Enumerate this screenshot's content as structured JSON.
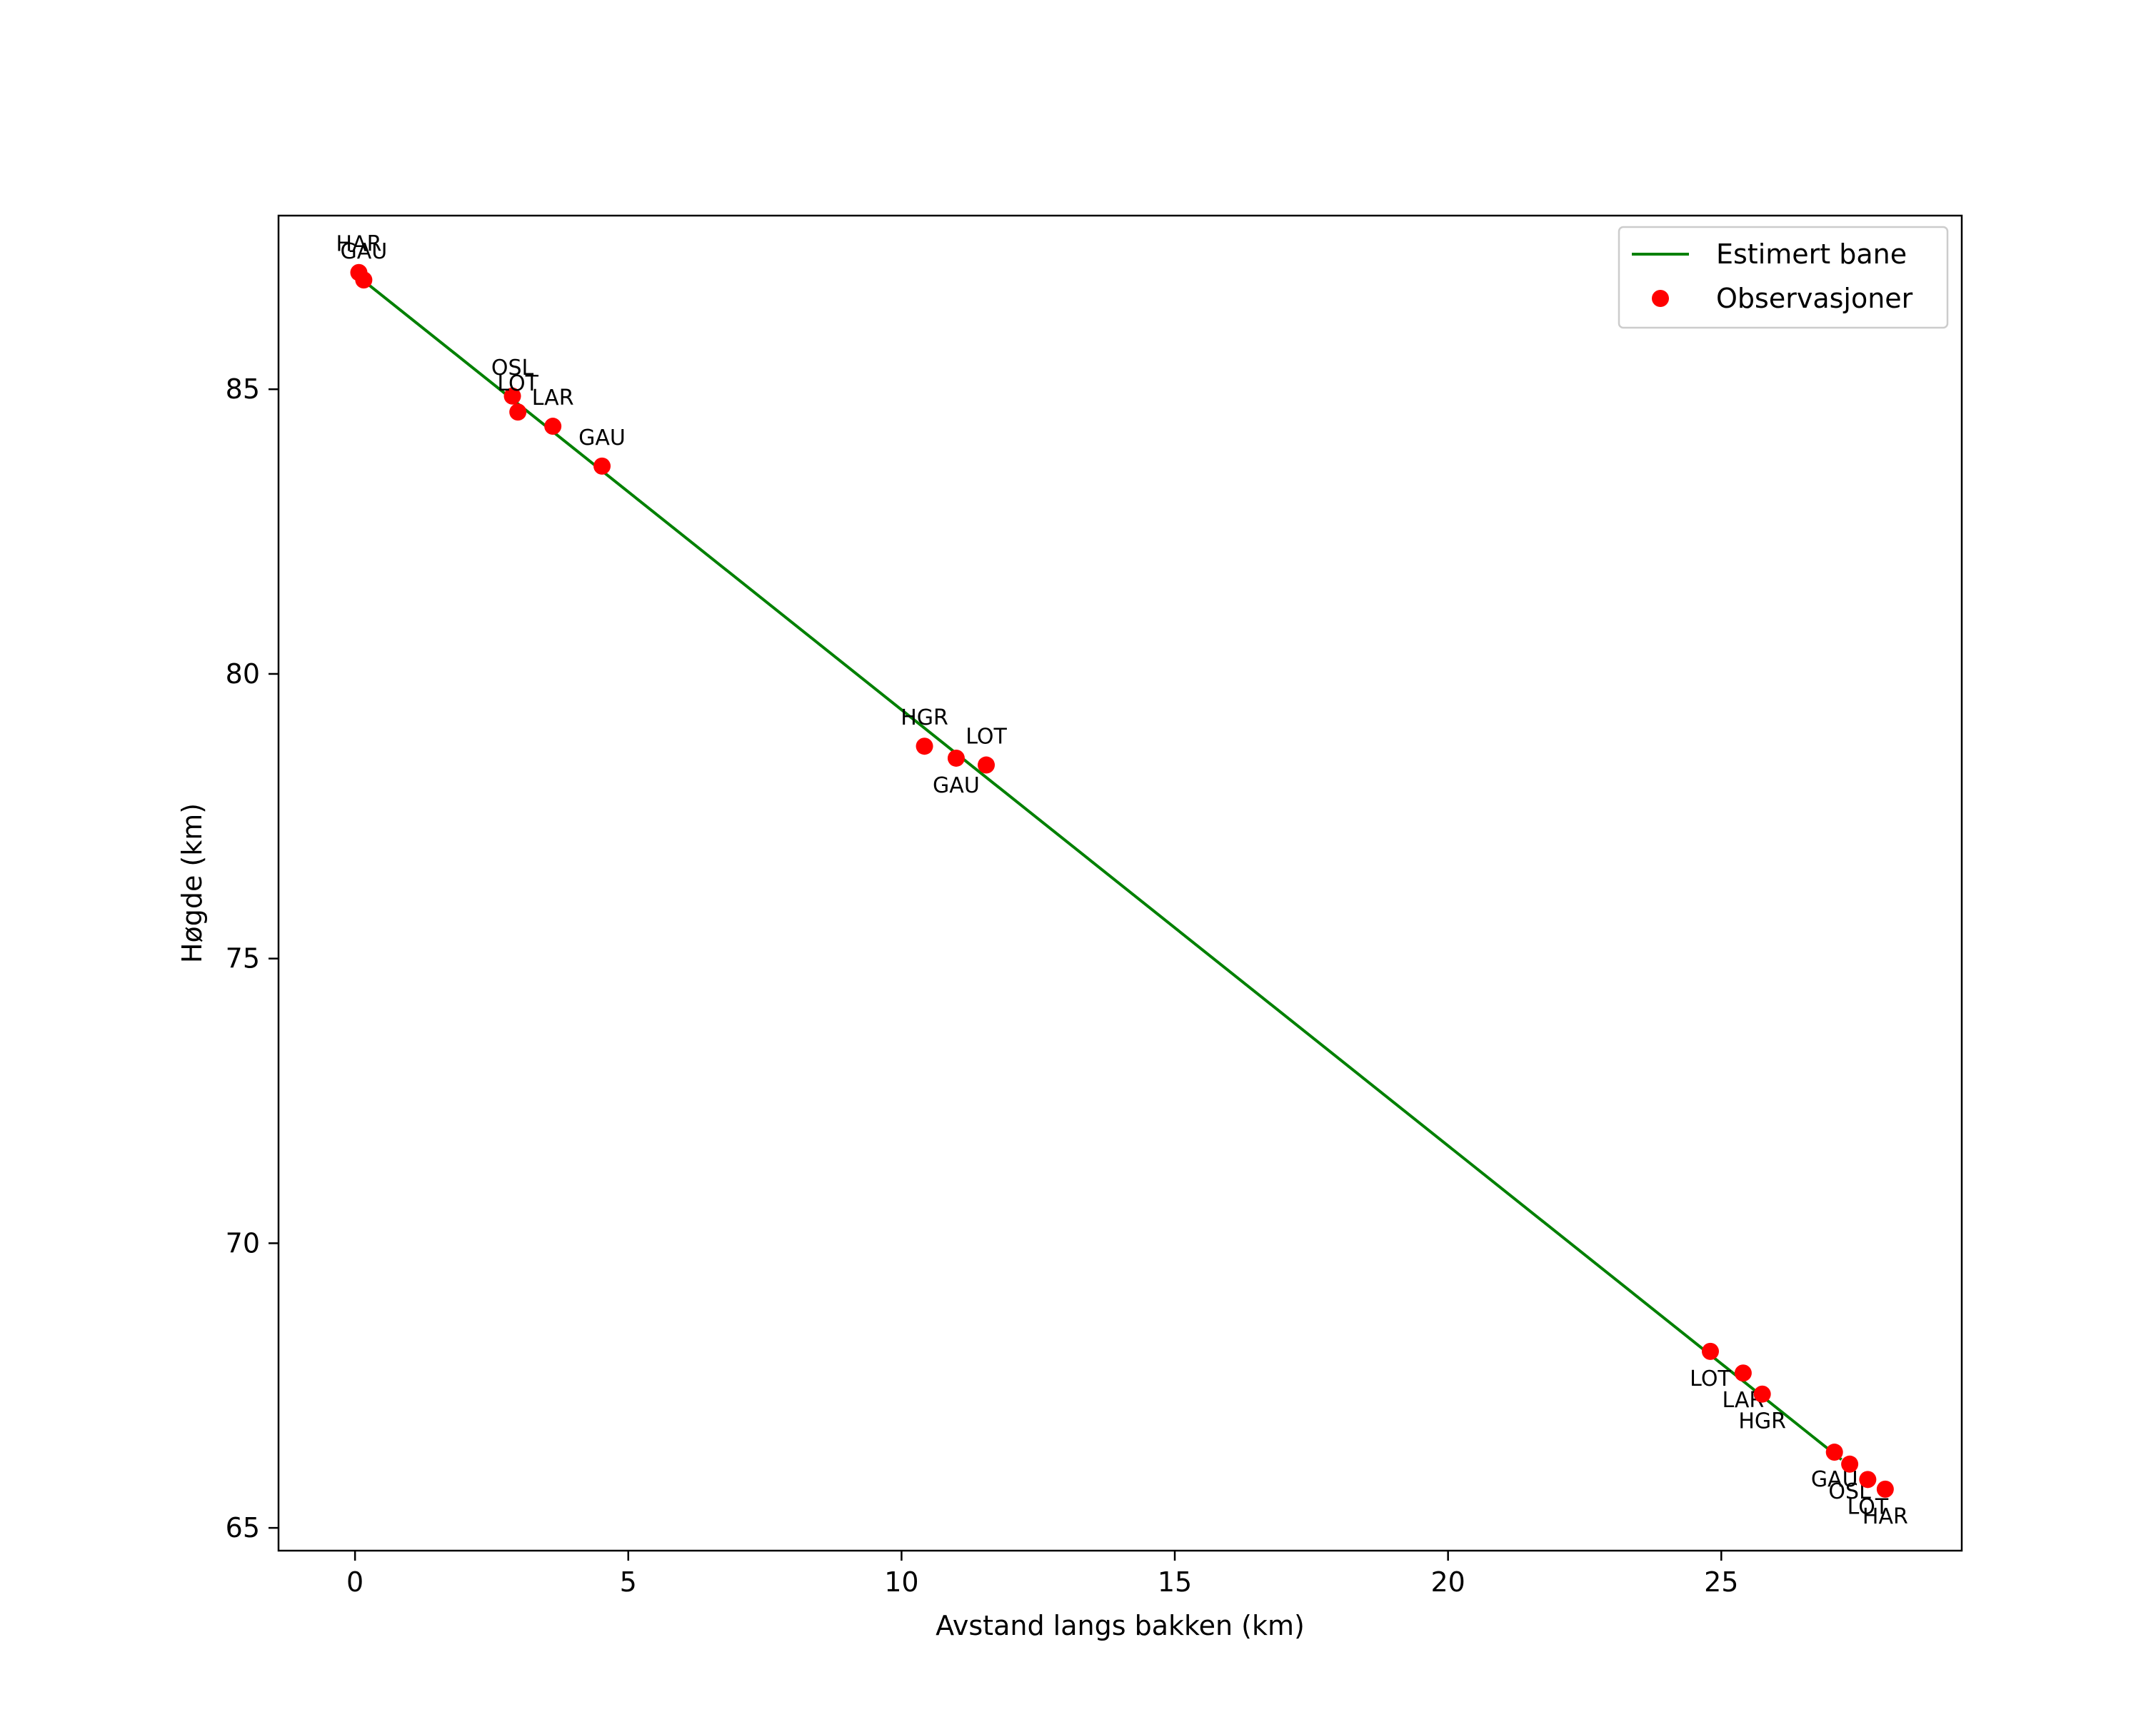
{
  "chart_data": {
    "type": "line",
    "title": "",
    "xlabel": "Avstand langs bakken (km)",
    "ylabel": "Høgde (km)",
    "xlim": [
      -1.4,
      29.4
    ],
    "ylim": [
      64.6,
      88.05
    ],
    "xticks": [
      0,
      5,
      10,
      15,
      20,
      25
    ],
    "yticks": [
      65,
      70,
      75,
      80,
      85
    ],
    "grid": false,
    "legend_position": "top-right",
    "colors": {
      "line": "#008000",
      "points": "#ff0000",
      "axes": "#000000"
    },
    "series": [
      {
        "name": "Estimert bane",
        "kind": "line",
        "x": [
          0.1,
          27.2
        ],
        "y": [
          86.95,
          66.2
        ]
      },
      {
        "name": "Observasjoner",
        "kind": "scatter",
        "points": [
          {
            "x": 0.07,
            "y": 87.05,
            "label": "HAR",
            "label_pos": "above"
          },
          {
            "x": 0.16,
            "y": 86.92,
            "label": "GAU",
            "label_pos": "above"
          },
          {
            "x": 2.88,
            "y": 84.88,
            "label": "OSL",
            "label_pos": "above"
          },
          {
            "x": 2.98,
            "y": 84.6,
            "label": "LOT",
            "label_pos": "above"
          },
          {
            "x": 3.62,
            "y": 84.35,
            "label": "LAR",
            "label_pos": "above"
          },
          {
            "x": 4.52,
            "y": 83.65,
            "label": "GAU",
            "label_pos": "above"
          },
          {
            "x": 10.42,
            "y": 78.73,
            "label": "HGR",
            "label_pos": "above"
          },
          {
            "x": 11.0,
            "y": 78.52,
            "label": "GAU",
            "label_pos": "below"
          },
          {
            "x": 11.55,
            "y": 78.4,
            "label": "LOT",
            "label_pos": "above"
          },
          {
            "x": 24.8,
            "y": 68.1,
            "label": "LOT",
            "label_pos": "below"
          },
          {
            "x": 25.4,
            "y": 67.72,
            "label": "LAR",
            "label_pos": "below"
          },
          {
            "x": 25.75,
            "y": 67.35,
            "label": "HGR",
            "label_pos": "below"
          },
          {
            "x": 27.07,
            "y": 66.33,
            "label": "GAU",
            "label_pos": "below"
          },
          {
            "x": 27.35,
            "y": 66.12,
            "label": "OSL",
            "label_pos": "below"
          },
          {
            "x": 27.68,
            "y": 65.85,
            "label": "LOT",
            "label_pos": "below"
          },
          {
            "x": 28.0,
            "y": 65.68,
            "label": "HAR",
            "label_pos": "below"
          }
        ]
      }
    ]
  }
}
